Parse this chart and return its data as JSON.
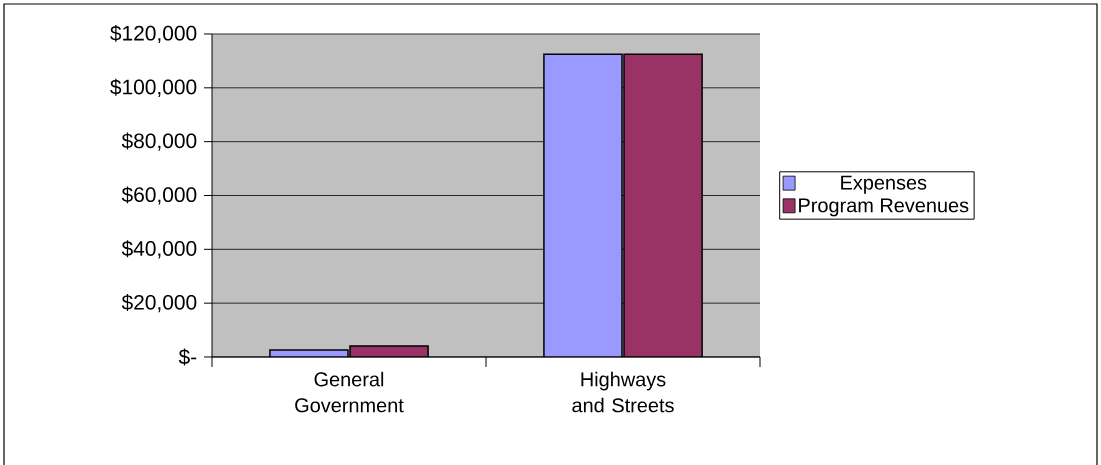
{
  "chart_data": {
    "type": "bar",
    "categories": [
      "General Government",
      "Highways and Streets"
    ],
    "series": [
      {
        "name": "Expenses",
        "color": "#9999ff",
        "values": [
          2600,
          112500
        ]
      },
      {
        "name": "Program Revenues",
        "color": "#993366",
        "values": [
          4100,
          112500
        ]
      }
    ],
    "ylim": [
      0,
      120000
    ],
    "yticks": [
      {
        "value": 0,
        "label": "$-"
      },
      {
        "value": 20000,
        "label": "$20,000"
      },
      {
        "value": 40000,
        "label": "$40,000"
      },
      {
        "value": 60000,
        "label": "$60,000"
      },
      {
        "value": 80000,
        "label": "$80,000"
      },
      {
        "value": 100000,
        "label": "$100,000"
      },
      {
        "value": 120000,
        "label": "$120,000"
      }
    ],
    "grid": "y",
    "legend": "right"
  }
}
